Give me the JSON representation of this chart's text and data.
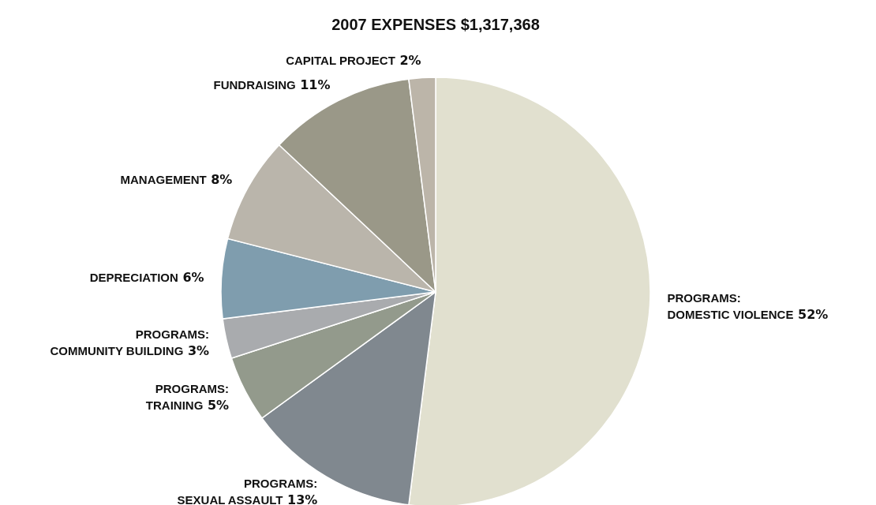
{
  "chart_data": {
    "type": "pie",
    "title": "2007 EXPENSES $1,317,368",
    "categories": [
      "PROGRAMS:\nDOMESTIC VIOLENCE",
      "PROGRAMS:\nSEXUAL ASSAULT",
      "PROGRAMS:\nTRAINING",
      "PROGRAMS:\nCOMMUNITY BUILDING",
      "DEPRECIATION",
      "MANAGEMENT",
      "FUNDRAISING",
      "CAPITAL PROJECT"
    ],
    "values": [
      52,
      13,
      5,
      3,
      6,
      8,
      11,
      2
    ],
    "value_labels": [
      "52%",
      "13%",
      "5%",
      "3%",
      "6%",
      "8%",
      "11%",
      "2%"
    ],
    "colors": [
      "#e1e0cf",
      "#80888f",
      "#939a8c",
      "#a9abae",
      "#7f9dae",
      "#bab5ab",
      "#9a9888",
      "#bcb5a9"
    ]
  }
}
